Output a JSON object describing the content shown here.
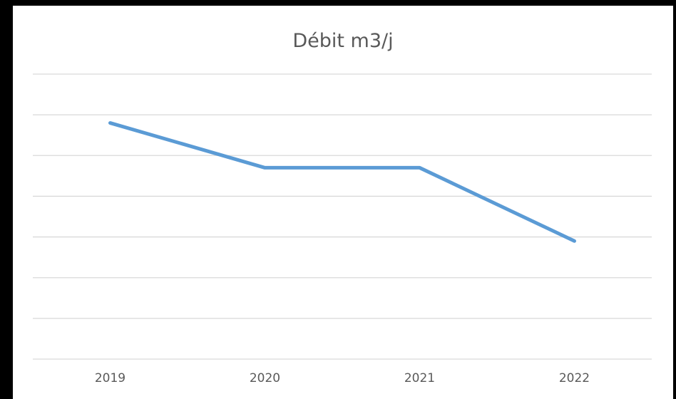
{
  "chart_data": {
    "type": "line",
    "title": "Débit m3/j",
    "categories": [
      "2019",
      "2020",
      "2021",
      "2022"
    ],
    "series": [
      {
        "values": [
          5.8,
          4.7,
          4.7,
          2.9
        ]
      }
    ],
    "ylim": [
      0,
      7
    ],
    "y_axis_labels_shown": false,
    "grid": true,
    "legend": "none",
    "line_color": "#5b9bd5",
    "grid_color": "#d9d9d9"
  }
}
